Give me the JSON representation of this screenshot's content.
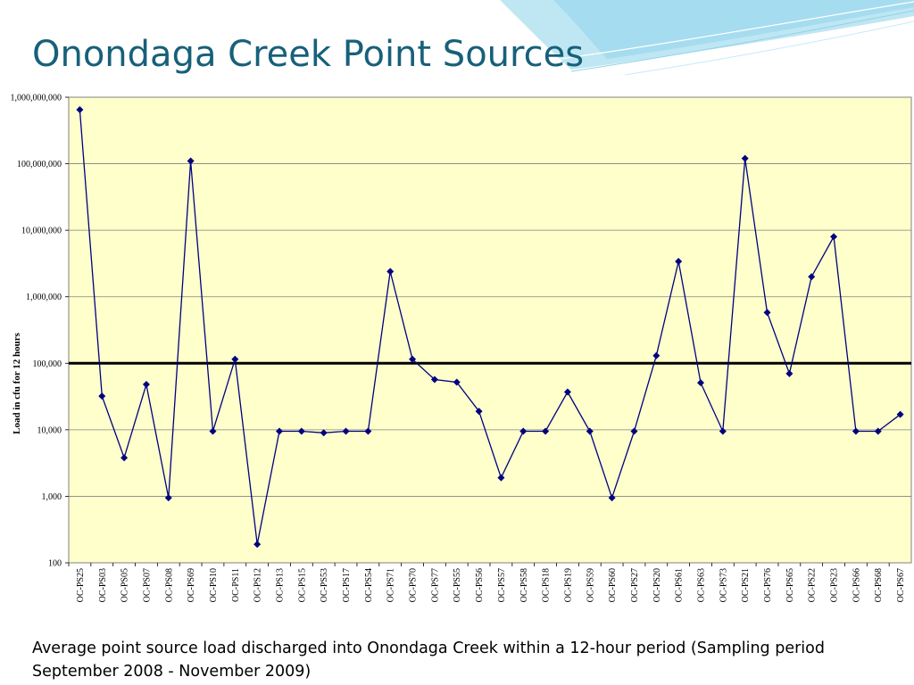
{
  "slide": {
    "title": "Onondaga Creek Point Sources",
    "caption": "Average point source load discharged into Onondaga Creek within a 12-hour period (Sampling period September 2008 - November 2009)"
  },
  "colors": {
    "title": "#17607a",
    "plot_background": "#ffffcc",
    "series_line": "#000080",
    "reference_line": "#000000",
    "gridline": "#808080",
    "header_swoosh": "#7fd0e8"
  },
  "chart_data": {
    "type": "line",
    "title": "",
    "xlabel": "",
    "ylabel": "Load in cfu for 12 hours",
    "y_scale": "log",
    "ylim": [
      100,
      1000000000
    ],
    "y_ticks": [
      {
        "value": 100,
        "label": "100"
      },
      {
        "value": 1000,
        "label": "1,000"
      },
      {
        "value": 10000,
        "label": "10,000"
      },
      {
        "value": 100000,
        "label": "100,000"
      },
      {
        "value": 1000000,
        "label": "1,000,000"
      },
      {
        "value": 10000000,
        "label": "10,000,000"
      },
      {
        "value": 100000000,
        "label": "100,000,000"
      },
      {
        "value": 1000000000,
        "label": "1,000,000,000"
      }
    ],
    "grid": "horizontal",
    "legend": "none",
    "reference_line": 100000,
    "categories": [
      "OC-PS25",
      "OC-PS03",
      "OC-PS05",
      "OC-PS07",
      "OC-PS08",
      "OC-PS69",
      "OC-PS10",
      "OC-PS11",
      "OC-PS12",
      "OC-PS13",
      "OC-PS15",
      "OC-PS53",
      "OC-PS17",
      "OC-PS54",
      "OC-PS71",
      "OC-PS70",
      "OC-PS77",
      "OC-PS55",
      "OC-PS56",
      "OC-PS57",
      "OC-PS58",
      "OC-PS18",
      "OC-PS19",
      "OC-PS59",
      "OC-PS60",
      "OC-PS27",
      "OC-PS20",
      "OC-PS61",
      "OC-PS63",
      "OC-PS73",
      "OC-PS21",
      "OC-PS76",
      "OC-PS65",
      "OC-PS22",
      "OC-PS23",
      "OC-PS66",
      "OC-PS68",
      "OC-PS67"
    ],
    "values": [
      650000000,
      32000,
      3800,
      48000,
      950,
      110000000,
      9500,
      115000,
      190,
      9500,
      9500,
      9000,
      9500,
      9500,
      2400000,
      115000,
      57000,
      52000,
      19000,
      1900,
      9500,
      9500,
      37000,
      9500,
      950,
      9500,
      130000,
      3400000,
      51000,
      9500,
      120000000,
      580000,
      70000,
      2000000,
      8000000,
      9500,
      9500,
      17000
    ]
  }
}
